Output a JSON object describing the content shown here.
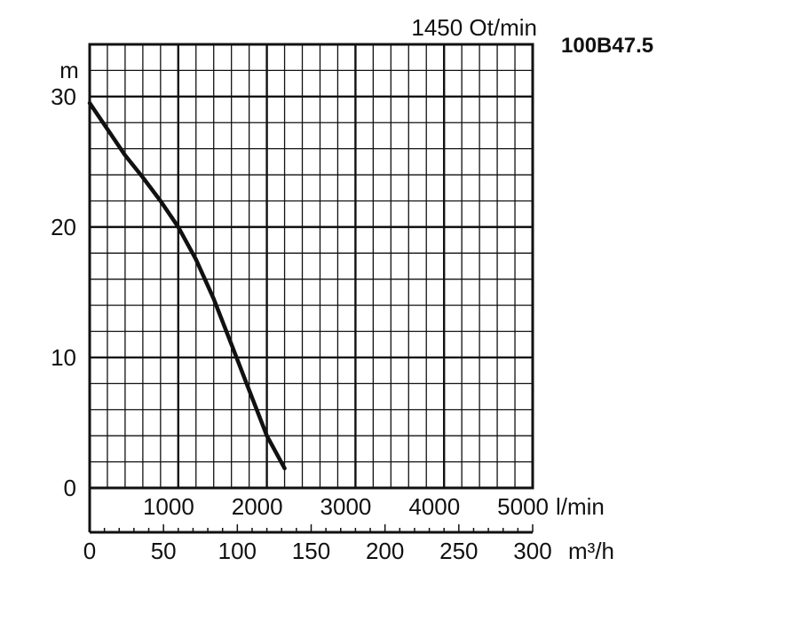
{
  "chart_data": {
    "type": "line",
    "title": "1450 Ot/min",
    "model": "100B47.5",
    "ylabel": "m",
    "ylim": [
      0,
      30
    ],
    "y_ticks": [
      "0",
      "10",
      "20",
      "30"
    ],
    "x_lmin_unit": "l/min",
    "x_lmin_ticks": [
      "1000",
      "2000",
      "3000",
      "4000",
      "5000"
    ],
    "x_m3h_unit": "m³/h",
    "x_m3h_ticks": [
      "0",
      "50",
      "100",
      "150",
      "200",
      "250",
      "300"
    ],
    "xlim_lmin": [
      0,
      5000
    ],
    "grid": true,
    "series": [
      {
        "x": [
          0,
          200,
          400,
          600,
          800,
          1000,
          1200,
          1400,
          1600,
          1800,
          2000,
          2200
        ],
        "y": [
          29.5,
          27.5,
          25.5,
          23.8,
          22.0,
          20.0,
          17.5,
          14.5,
          11.0,
          7.5,
          4.0,
          1.5
        ]
      }
    ]
  }
}
